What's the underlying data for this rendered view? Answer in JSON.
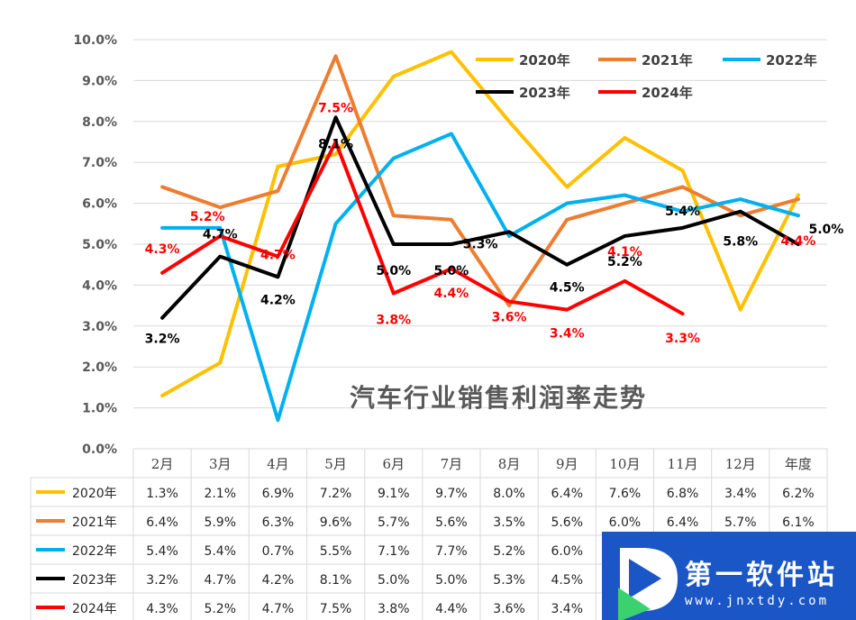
{
  "chart_data": {
    "type": "line",
    "title": "汽车行业销售利润率走势",
    "categories": [
      "2月",
      "3月",
      "4月",
      "5月",
      "6月",
      "7月",
      "8月",
      "9月",
      "10月",
      "11月",
      "12月",
      "年度"
    ],
    "y_ticks": [
      "0.0%",
      "1.0%",
      "2.0%",
      "3.0%",
      "4.0%",
      "5.0%",
      "6.0%",
      "7.0%",
      "8.0%",
      "9.0%",
      "10.0%"
    ],
    "ylim": [
      0,
      10
    ],
    "grid": true,
    "legend": "top-right",
    "series": [
      {
        "name": "2020年",
        "color": "#FFC000",
        "values": [
          1.3,
          2.1,
          6.9,
          7.2,
          9.1,
          9.7,
          8.0,
          6.4,
          7.6,
          6.8,
          3.4,
          6.2
        ],
        "table": [
          "1.3%",
          "2.1%",
          "6.9%",
          "7.2%",
          "9.1%",
          "9.7%",
          "8.0%",
          "6.4%",
          "7.6%",
          "6.8%",
          "3.4%",
          "6.2%"
        ]
      },
      {
        "name": "2021年",
        "color": "#ED7D31",
        "values": [
          6.4,
          5.9,
          6.3,
          9.6,
          5.7,
          5.6,
          3.5,
          5.6,
          6.0,
          6.4,
          5.7,
          6.1
        ],
        "table": [
          "6.4%",
          "5.9%",
          "6.3%",
          "9.6%",
          "5.7%",
          "5.6%",
          "3.5%",
          "5.6%",
          "6.0%",
          "6.4%",
          "5.7%",
          "6.1%"
        ]
      },
      {
        "name": "2022年",
        "color": "#00B0F0",
        "values": [
          5.4,
          5.4,
          0.7,
          5.5,
          7.1,
          7.7,
          5.2,
          6.0,
          6.2,
          5.8,
          6.1,
          5.7
        ],
        "table": [
          "5.4%",
          "5.4%",
          "0.7%",
          "5.5%",
          "7.1%",
          "7.7%",
          "5.2%",
          "6.0%",
          "",
          "",
          "",
          ""
        ]
      },
      {
        "name": "2023年",
        "color": "#000000",
        "values": [
          3.2,
          4.7,
          4.2,
          8.1,
          5.0,
          5.0,
          5.3,
          4.5,
          5.2,
          5.4,
          5.8,
          5.0
        ],
        "labels": [
          "3.2%",
          "4.7%",
          "4.2%",
          "8.1%",
          "5.0%",
          "5.0%",
          "5.3%",
          "4.5%",
          "5.2%",
          "5.4%",
          "5.8%",
          "5.0%"
        ],
        "table": [
          "3.2%",
          "4.7%",
          "4.2%",
          "8.1%",
          "5.0%",
          "5.0%",
          "5.3%",
          "4.5%",
          "",
          "",
          "",
          ""
        ]
      },
      {
        "name": "2024年",
        "color": "#FF0000",
        "values": [
          4.3,
          5.2,
          4.7,
          7.5,
          3.8,
          4.4,
          3.6,
          3.4,
          4.1,
          3.3,
          null,
          null
        ],
        "labels": [
          "4.3%",
          "5.2%",
          "4.7%",
          "7.5%",
          "3.8%",
          "4.4%",
          "3.6%",
          "3.4%",
          "4.1%",
          "3.3%",
          "",
          "4.4%"
        ],
        "table": [
          "4.3%",
          "5.2%",
          "4.7%",
          "7.5%",
          "3.8%",
          "4.4%",
          "3.6%",
          "3.4%",
          "",
          "",
          "",
          ""
        ]
      }
    ]
  },
  "watermark": {
    "title": "第一软件站",
    "url": "www.jnxtdy.com"
  }
}
